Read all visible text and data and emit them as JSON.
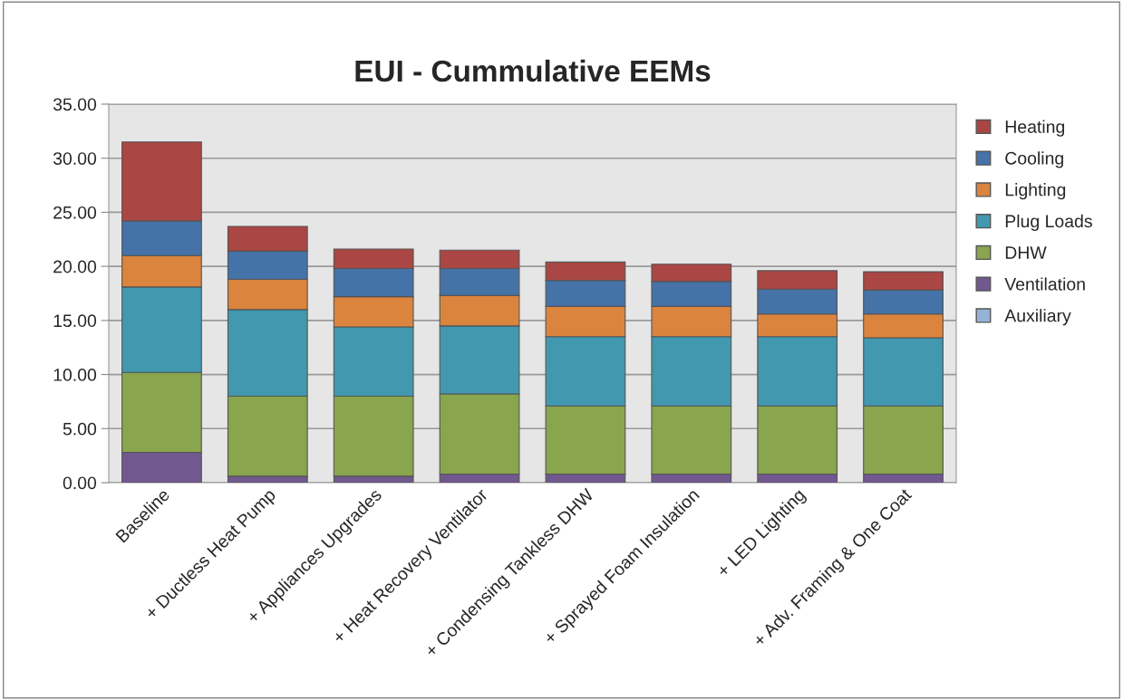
{
  "chart_data": {
    "type": "bar",
    "title": "EUI - Cummulative EEMs",
    "stacked": true,
    "categories": [
      "Baseline",
      "+ Ductless Heat Pump",
      "+ Appliances Upgrades",
      "+ Heat Recovery Ventilator",
      "+ Condensing Tankless DHW",
      "+ Sprayed Foam Insulation",
      "+ LED Lighting",
      "+ Adv. Framing & One Coat"
    ],
    "series": [
      {
        "name": "Auxiliary",
        "color": "#95b3d7",
        "values": [
          0,
          0,
          0,
          0,
          0,
          0,
          0,
          0
        ]
      },
      {
        "name": "Ventilation",
        "color": "#71588f",
        "values": [
          2.8,
          0.6,
          0.6,
          0.8,
          0.8,
          0.8,
          0.8,
          0.8
        ]
      },
      {
        "name": "DHW",
        "color": "#89a54e",
        "values": [
          7.4,
          7.4,
          7.4,
          7.4,
          6.3,
          6.3,
          6.3,
          6.3
        ]
      },
      {
        "name": "Plug Loads",
        "color": "#4198af",
        "values": [
          7.9,
          8.0,
          6.4,
          6.3,
          6.4,
          6.4,
          6.4,
          6.3
        ]
      },
      {
        "name": "Lighting",
        "color": "#db843d",
        "values": [
          2.9,
          2.8,
          2.8,
          2.8,
          2.8,
          2.8,
          2.1,
          2.2
        ]
      },
      {
        "name": "Cooling",
        "color": "#4572a7",
        "values": [
          3.2,
          2.6,
          2.6,
          2.5,
          2.4,
          2.3,
          2.3,
          2.2
        ]
      },
      {
        "name": "Heating",
        "color": "#aa4643",
        "values": [
          7.3,
          2.3,
          1.8,
          1.7,
          1.7,
          1.6,
          1.7,
          1.7
        ]
      }
    ],
    "ylim": [
      0,
      35
    ],
    "yticks": [
      {
        "value": 0,
        "label": "0.00"
      },
      {
        "value": 5,
        "label": "5.00"
      },
      {
        "value": 10,
        "label": "10.00"
      },
      {
        "value": 15,
        "label": "15.00"
      },
      {
        "value": 20,
        "label": "20.00"
      },
      {
        "value": 25,
        "label": "25.00"
      },
      {
        "value": 30,
        "label": "30.00"
      },
      {
        "value": 35,
        "label": "35.00"
      }
    ],
    "grid": "y",
    "legend": "right"
  }
}
